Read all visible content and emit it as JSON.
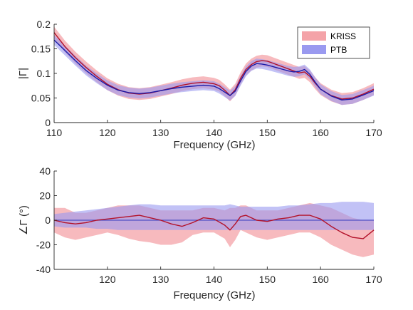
{
  "colors": {
    "kriss_band": "#f4a3a8",
    "ptb_band": "#9a9af0",
    "kriss_line": "#b3122a",
    "ptb_line": "#1a1aa8",
    "zero_line": "#4f4fc4",
    "axis": "#262626"
  },
  "chart_data": [
    {
      "type": "line",
      "title": "",
      "xlabel": "Frequency (GHz)",
      "ylabel": "|Γ|",
      "xlim": [
        110,
        170
      ],
      "ylim": [
        0,
        0.2
      ],
      "xticks": [
        110,
        120,
        130,
        140,
        150,
        160,
        170
      ],
      "xtick_labels": [
        "110",
        "120",
        "130",
        "140",
        "150",
        "160",
        "170"
      ],
      "yticks": [
        0,
        0.05,
        0.1,
        0.15,
        0.2
      ],
      "ytick_labels": [
        "0",
        "0.05",
        "0.1",
        "0.15",
        "0.2"
      ],
      "grid": false,
      "legend_position": "top-right",
      "x": [
        110,
        112,
        114,
        116,
        118,
        120,
        122,
        124,
        126,
        128,
        130,
        132,
        134,
        136,
        138,
        140,
        141,
        142,
        143,
        144,
        145,
        146,
        147,
        148,
        149,
        150,
        151,
        152,
        153,
        154,
        155,
        156,
        157,
        158,
        159,
        160,
        162,
        164,
        166,
        168,
        170
      ],
      "series": [
        {
          "name": "KRISS",
          "values": [
            0.183,
            0.155,
            0.132,
            0.112,
            0.094,
            0.078,
            0.067,
            0.06,
            0.058,
            0.06,
            0.065,
            0.07,
            0.076,
            0.08,
            0.082,
            0.079,
            0.075,
            0.066,
            0.055,
            0.067,
            0.09,
            0.108,
            0.118,
            0.124,
            0.126,
            0.125,
            0.121,
            0.117,
            0.113,
            0.109,
            0.105,
            0.101,
            0.103,
            0.094,
            0.08,
            0.068,
            0.055,
            0.048,
            0.05,
            0.058,
            0.068
          ],
          "band_halfwidth": 0.012
        },
        {
          "name": "PTB",
          "values": [
            0.168,
            0.147,
            0.126,
            0.106,
            0.09,
            0.076,
            0.066,
            0.061,
            0.059,
            0.061,
            0.065,
            0.069,
            0.072,
            0.074,
            0.076,
            0.074,
            0.069,
            0.062,
            0.055,
            0.064,
            0.085,
            0.104,
            0.115,
            0.12,
            0.119,
            0.117,
            0.114,
            0.111,
            0.108,
            0.105,
            0.103,
            0.104,
            0.108,
            0.098,
            0.082,
            0.068,
            0.054,
            0.046,
            0.048,
            0.056,
            0.065
          ],
          "band_halfwidth": 0.01
        }
      ]
    },
    {
      "type": "line",
      "title": "",
      "xlabel": "Frequency (GHz)",
      "ylabel": "∠Γ (°)",
      "xlim": [
        110,
        170
      ],
      "ylim": [
        -40,
        40
      ],
      "xticks": [
        120,
        130,
        140,
        150,
        160,
        170
      ],
      "xtick_labels": [
        "120",
        "130",
        "140",
        "150",
        "160",
        "170"
      ],
      "yticks": [
        -40,
        -20,
        0,
        20,
        40
      ],
      "ytick_labels": [
        "-40",
        "-20",
        "0",
        "20",
        "40"
      ],
      "grid": false,
      "reference_line": 0,
      "x": [
        110,
        112,
        114,
        116,
        118,
        120,
        122,
        124,
        126,
        128,
        130,
        132,
        134,
        136,
        138,
        140,
        142,
        143,
        144,
        145,
        146,
        148,
        150,
        152,
        154,
        156,
        158,
        160,
        162,
        164,
        166,
        168,
        170
      ],
      "series": [
        {
          "name": "KRISS",
          "values": [
            0,
            -2,
            -3,
            -2,
            0,
            1,
            2,
            3,
            4,
            2,
            0,
            -3,
            -5,
            -2,
            2,
            1,
            -4,
            -8,
            -3,
            3,
            4,
            0,
            -1,
            1,
            2,
            4,
            4,
            1,
            -5,
            -10,
            -14,
            -15,
            -8
          ],
          "band_lower": [
            -10,
            -14,
            -16,
            -14,
            -12,
            -10,
            -12,
            -15,
            -17,
            -18,
            -20,
            -20,
            -18,
            -12,
            -10,
            -10,
            -15,
            -22,
            -16,
            -8,
            -10,
            -14,
            -16,
            -14,
            -12,
            -10,
            -10,
            -14,
            -20,
            -24,
            -28,
            -30,
            -28
          ],
          "band_upper": [
            10,
            10,
            6,
            6,
            8,
            10,
            12,
            12,
            12,
            10,
            8,
            8,
            8,
            8,
            10,
            10,
            8,
            10,
            10,
            12,
            12,
            8,
            8,
            8,
            10,
            12,
            14,
            12,
            10,
            6,
            2,
            0,
            0
          ]
        },
        {
          "name": "PTB",
          "values": [
            0,
            0,
            0,
            0,
            0,
            0,
            0,
            0,
            0,
            0,
            0,
            0,
            0,
            0,
            0,
            0,
            0,
            0,
            0,
            0,
            0,
            0,
            0,
            0,
            0,
            0,
            0,
            0,
            0,
            0,
            0,
            0,
            0
          ],
          "band_lower": [
            -5,
            -6,
            -6,
            -6,
            -7,
            -7,
            -8,
            -8,
            -8,
            -8,
            -8,
            -8,
            -8,
            -8,
            -8,
            -8,
            -8,
            -8,
            -8,
            -8,
            -8,
            -8,
            -8,
            -8,
            -8,
            -8,
            -8,
            -8,
            -8,
            -8,
            -8,
            -8,
            -8
          ],
          "band_upper": [
            5,
            6,
            7,
            8,
            9,
            10,
            11,
            12,
            13,
            13,
            12,
            12,
            12,
            12,
            12,
            12,
            12,
            13,
            12,
            11,
            11,
            11,
            11,
            11,
            12,
            12,
            13,
            14,
            14,
            15,
            15,
            15,
            14
          ]
        }
      ]
    }
  ]
}
